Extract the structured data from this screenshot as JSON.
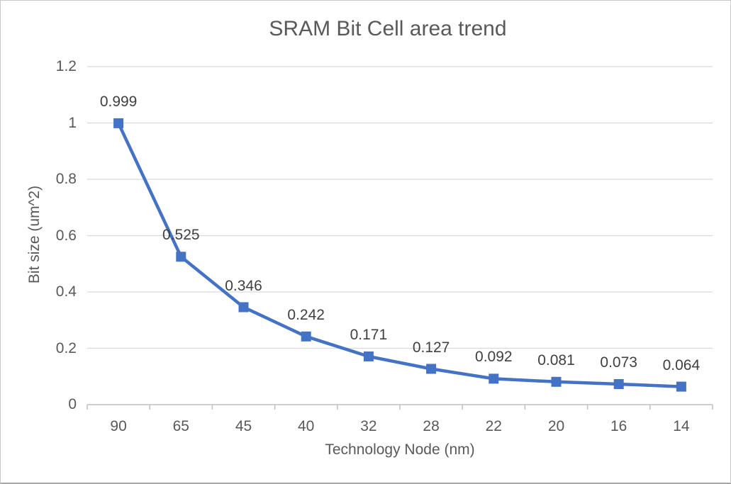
{
  "chart_data": {
    "type": "line",
    "title": "SRAM Bit Cell area trend",
    "xlabel": "Technology Node (nm)",
    "ylabel": "Bit size (um^2)",
    "categories": [
      "90",
      "65",
      "45",
      "40",
      "32",
      "28",
      "22",
      "20",
      "16",
      "14"
    ],
    "values": [
      0.999,
      0.525,
      0.346,
      0.242,
      0.171,
      0.127,
      0.092,
      0.081,
      0.073,
      0.064
    ],
    "data_labels": [
      "0.999",
      "0.525",
      "0.346",
      "0.242",
      "0.171",
      "0.127",
      "0.092",
      "0.081",
      "0.073",
      "0.064"
    ],
    "ytick_values": [
      0,
      0.2,
      0.4,
      0.6,
      0.8,
      1,
      1.2
    ],
    "ytick_labels": [
      "0",
      "0.2",
      "0.4",
      "0.6",
      "0.8",
      "1",
      "1.2"
    ],
    "ylim": [
      0,
      1.2
    ],
    "grid": true,
    "legend": false,
    "marker_shape": "square",
    "colors": {
      "line": "#4472C4",
      "marker": "#4472C4",
      "grid": "#D9D9D9",
      "axis": "#BFBFBF",
      "axis_text": "#595959",
      "data_label_text": "#404040",
      "title_text": "#595959"
    }
  }
}
